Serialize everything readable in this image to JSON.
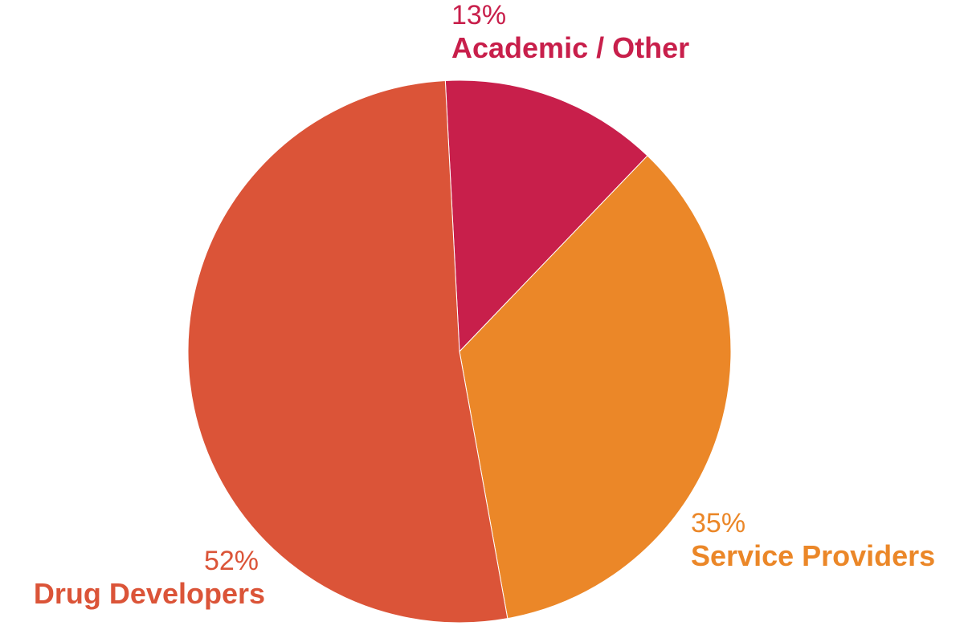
{
  "chart_data": {
    "type": "pie",
    "title": "",
    "slices": [
      {
        "label": "Academic / Other",
        "value": 13,
        "display": "13%",
        "color": "#c81f4b"
      },
      {
        "label": "Service Providers",
        "value": 35,
        "display": "35%",
        "color": "#eb8728"
      },
      {
        "label": "Drug Developers",
        "value": 52,
        "display": "52%",
        "color": "#db5438"
      }
    ],
    "start_angle_deg": -3,
    "direction": "clockwise",
    "legend": "none"
  }
}
